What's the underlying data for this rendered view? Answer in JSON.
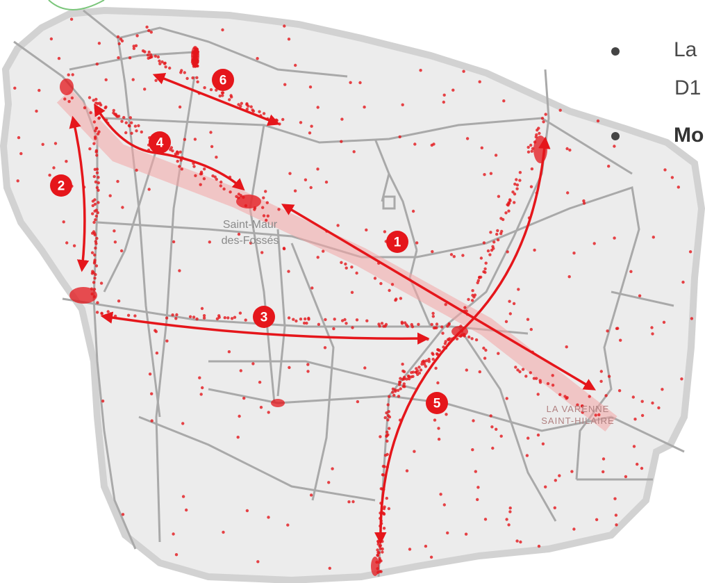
{
  "places": {
    "saint_maur_1": "Saint-Maur",
    "saint_maur_2": "des-Fossés",
    "varenne_1": "LA VARENNE",
    "varenne_2": "SAINT-HILAIRE"
  },
  "routes": [
    "1",
    "2",
    "3",
    "4",
    "5",
    "6"
  ],
  "bullets": {
    "line1": "La",
    "line1b": "D1",
    "line2": "Mo"
  },
  "colors": {
    "territory": "#ececec",
    "roads": "#a9a9a9",
    "points": "#e4161b",
    "arrows": "#e5161b",
    "corridor": "#f4a5a5"
  }
}
